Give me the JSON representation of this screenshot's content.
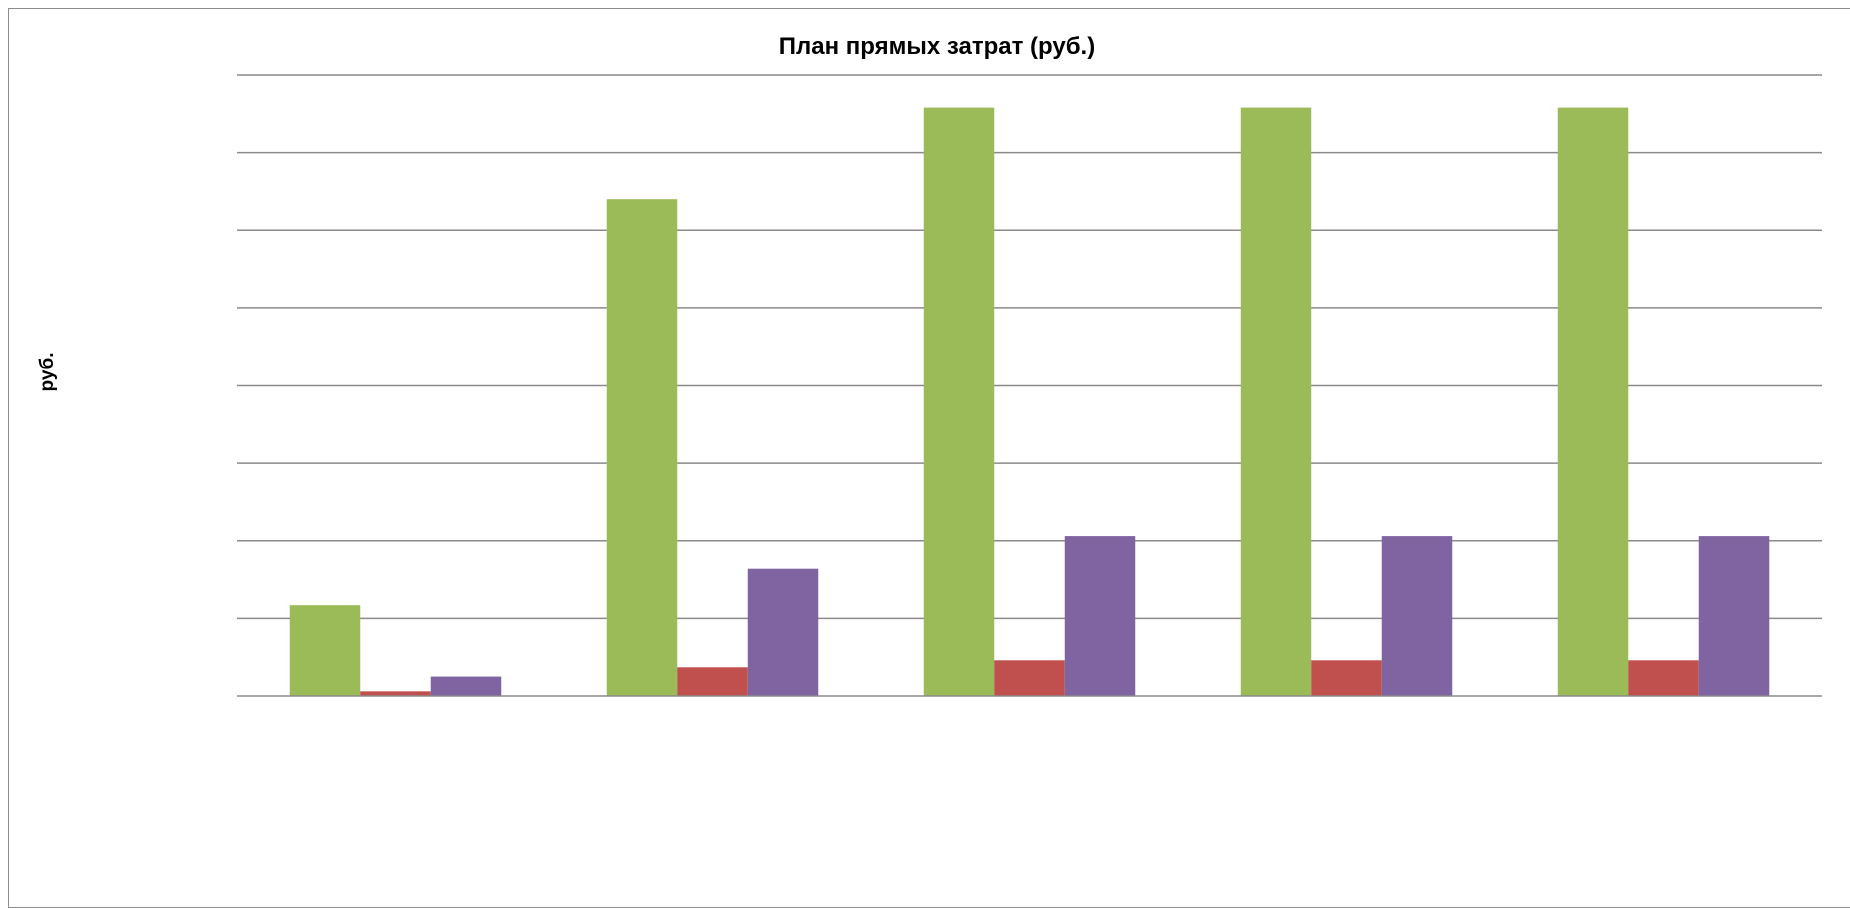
{
  "chart_data": {
    "type": "bar",
    "title": "План прямых затрат (руб.)",
    "xlabel": "",
    "ylabel": "руб.",
    "categories": [
      "",
      "",
      "",
      "",
      ""
    ],
    "series": [
      {
        "color": "#9BBB59",
        "values": [
          1.17,
          6.4,
          7.58,
          7.58,
          7.58
        ]
      },
      {
        "color": "#C0504D",
        "values": [
          0.06,
          0.37,
          0.46,
          0.46,
          0.46
        ]
      },
      {
        "color": "#8064A2",
        "values": [
          0.25,
          1.64,
          2.06,
          2.06,
          2.06
        ]
      }
    ],
    "ylim": [
      0,
      8
    ],
    "gridlines": true,
    "legend": "none"
  }
}
